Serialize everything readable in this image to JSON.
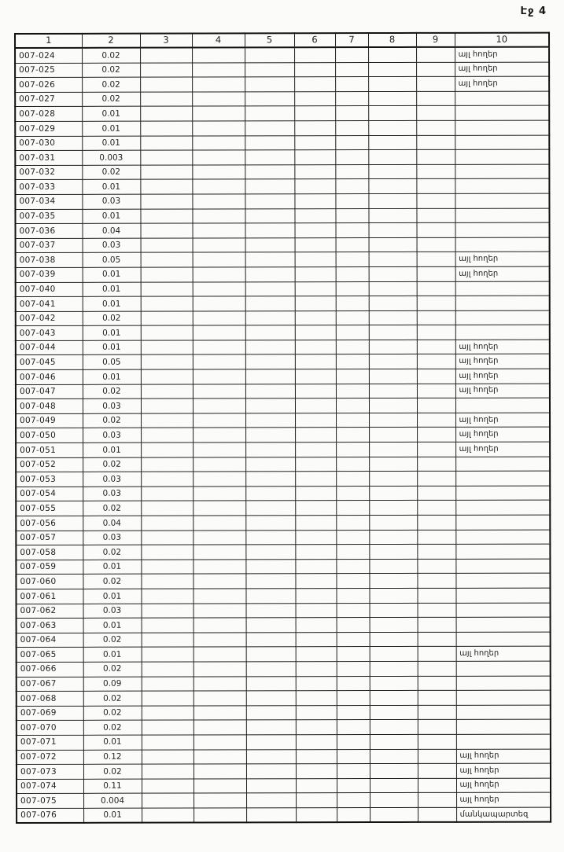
{
  "page": {
    "label": "Էջ 4"
  },
  "table": {
    "headers": [
      "1",
      "2",
      "3",
      "4",
      "5",
      "6",
      "7",
      "8",
      "9",
      "10"
    ],
    "blank_column_count": 7,
    "note_other_lands": "այլ հողեր",
    "note_kindergarten": "մանկապարտեզ",
    "rows": [
      {
        "id": "007-024",
        "value": "0.02",
        "note": "այլ հողեր"
      },
      {
        "id": "007-025",
        "value": "0.02",
        "note": "այլ հողեր"
      },
      {
        "id": "007-026",
        "value": "0.02",
        "note": "այլ հողեր"
      },
      {
        "id": "007-027",
        "value": "0.02",
        "note": ""
      },
      {
        "id": "007-028",
        "value": "0.01",
        "note": ""
      },
      {
        "id": "007-029",
        "value": "0.01",
        "note": ""
      },
      {
        "id": "007-030",
        "value": "0.01",
        "note": ""
      },
      {
        "id": "007-031",
        "value": "0.003",
        "note": ""
      },
      {
        "id": "007-032",
        "value": "0.02",
        "note": ""
      },
      {
        "id": "007-033",
        "value": "0.01",
        "note": ""
      },
      {
        "id": "007-034",
        "value": "0.03",
        "note": ""
      },
      {
        "id": "007-035",
        "value": "0.01",
        "note": ""
      },
      {
        "id": "007-036",
        "value": "0.04",
        "note": ""
      },
      {
        "id": "007-037",
        "value": "0.03",
        "note": ""
      },
      {
        "id": "007-038",
        "value": "0.05",
        "note": "այլ հողեր"
      },
      {
        "id": "007-039",
        "value": "0.01",
        "note": "այլ հողեր"
      },
      {
        "id": "007-040",
        "value": "0.01",
        "note": ""
      },
      {
        "id": "007-041",
        "value": "0.01",
        "note": ""
      },
      {
        "id": "007-042",
        "value": "0.02",
        "note": ""
      },
      {
        "id": "007-043",
        "value": "0.01",
        "note": ""
      },
      {
        "id": "007-044",
        "value": "0.01",
        "note": "այլ հողեր"
      },
      {
        "id": "007-045",
        "value": "0.05",
        "note": "այլ հողեր"
      },
      {
        "id": "007-046",
        "value": "0.01",
        "note": "այլ հողեր"
      },
      {
        "id": "007-047",
        "value": "0.02",
        "note": "այլ հողեր"
      },
      {
        "id": "007-048",
        "value": "0.03",
        "note": ""
      },
      {
        "id": "007-049",
        "value": "0.02",
        "note": "այլ հողեր"
      },
      {
        "id": "007-050",
        "value": "0.03",
        "note": "այլ հողեր"
      },
      {
        "id": "007-051",
        "value": "0.01",
        "note": "այլ հողեր"
      },
      {
        "id": "007-052",
        "value": "0.02",
        "note": ""
      },
      {
        "id": "007-053",
        "value": "0.03",
        "note": ""
      },
      {
        "id": "007-054",
        "value": "0.03",
        "note": ""
      },
      {
        "id": "007-055",
        "value": "0.02",
        "note": ""
      },
      {
        "id": "007-056",
        "value": "0.04",
        "note": ""
      },
      {
        "id": "007-057",
        "value": "0.03",
        "note": ""
      },
      {
        "id": "007-058",
        "value": "0.02",
        "note": ""
      },
      {
        "id": "007-059",
        "value": "0.01",
        "note": ""
      },
      {
        "id": "007-060",
        "value": "0.02",
        "note": ""
      },
      {
        "id": "007-061",
        "value": "0.01",
        "note": ""
      },
      {
        "id": "007-062",
        "value": "0.03",
        "note": ""
      },
      {
        "id": "007-063",
        "value": "0.01",
        "note": ""
      },
      {
        "id": "007-064",
        "value": "0.02",
        "note": ""
      },
      {
        "id": "007-065",
        "value": "0.01",
        "note": "այլ հողեր"
      },
      {
        "id": "007-066",
        "value": "0.02",
        "note": ""
      },
      {
        "id": "007-067",
        "value": "0.09",
        "note": ""
      },
      {
        "id": "007-068",
        "value": "0.02",
        "note": ""
      },
      {
        "id": "007-069",
        "value": "0.02",
        "note": ""
      },
      {
        "id": "007-070",
        "value": "0.02",
        "note": ""
      },
      {
        "id": "007-071",
        "value": "0.01",
        "note": ""
      },
      {
        "id": "007-072",
        "value": "0.12",
        "note": "այլ հողեր"
      },
      {
        "id": "007-073",
        "value": "0.02",
        "note": "այլ հողեր"
      },
      {
        "id": "007-074",
        "value": "0.11",
        "note": "այլ հողեր"
      },
      {
        "id": "007-075",
        "value": "0.004",
        "note": "այլ հողեր"
      },
      {
        "id": "007-076",
        "value": "0.01",
        "note": "մանկապարտեզ"
      }
    ]
  }
}
